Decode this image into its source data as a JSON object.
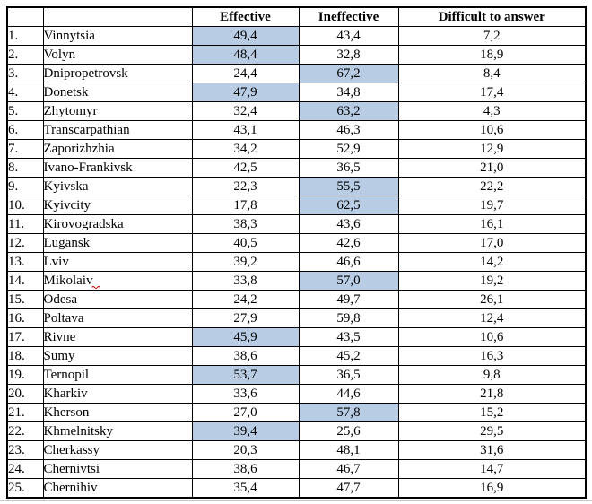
{
  "table": {
    "headers": [
      "",
      "",
      "Effective",
      "Ineffective",
      "Difficult to answer"
    ],
    "highlight_color": "#B8CCE4",
    "border_color": "#000000",
    "spellcheck_color": "#cc0000",
    "rows": [
      {
        "num": "1.",
        "region": "Vinnytsia",
        "effective": "49,4",
        "ineffective": "43,4",
        "difficult": "7,2",
        "highlight": "effective"
      },
      {
        "num": "2.",
        "region": "Volyn",
        "effective": "48,4",
        "ineffective": "32,8",
        "difficult": "18,9",
        "highlight": "effective"
      },
      {
        "num": "3.",
        "region": "Dnipropetrovsk",
        "effective": "24,4",
        "ineffective": "67,2",
        "difficult": "8,4",
        "highlight": "ineffective"
      },
      {
        "num": "4.",
        "region": "Donetsk",
        "effective": "47,9",
        "ineffective": "34,8",
        "difficult": "17,4",
        "highlight": "effective"
      },
      {
        "num": "5.",
        "region": "Zhytomyr",
        "effective": "32,4",
        "ineffective": "63,2",
        "difficult": "4,3",
        "highlight": "ineffective"
      },
      {
        "num": "6.",
        "region": "Transcarpathian",
        "effective": "43,1",
        "ineffective": "46,3",
        "difficult": "10,6",
        "highlight": null
      },
      {
        "num": "7.",
        "region": "Zaporizhzhia",
        "effective": "34,2",
        "ineffective": "52,9",
        "difficult": "12,9",
        "highlight": null
      },
      {
        "num": "8.",
        "region": "Ivano-Frankivsk",
        "effective": "42,5",
        "ineffective": "36,5",
        "difficult": "21,0",
        "highlight": null
      },
      {
        "num": "9.",
        "region": "Kyivska",
        "effective": "22,3",
        "ineffective": "55,5",
        "difficult": "22,2",
        "highlight": "ineffective"
      },
      {
        "num": "10.",
        "region": "Kyivcity",
        "effective": "17,8",
        "ineffective": "62,5",
        "difficult": "19,7",
        "highlight": "ineffective"
      },
      {
        "num": "11.",
        "region": "Kirovogradska",
        "effective": "38,3",
        "ineffective": "43,6",
        "difficult": "16,1",
        "highlight": null
      },
      {
        "num": "12.",
        "region": "Lugansk",
        "effective": "40,5",
        "ineffective": "42,6",
        "difficult": "17,0",
        "highlight": null
      },
      {
        "num": "13.",
        "region": "Lviv",
        "effective": "39,2",
        "ineffective": "46,6",
        "difficult": "14,2",
        "highlight": null
      },
      {
        "num": "14.",
        "region": "Mikolaiv",
        "effective": "33,8",
        "ineffective": "57,0",
        "difficult": "19,2",
        "highlight": "ineffective",
        "spellcheck_mark": true
      },
      {
        "num": "15.",
        "region": "Odesa",
        "effective": "24,2",
        "ineffective": "49,7",
        "difficult": "26,1",
        "highlight": null
      },
      {
        "num": "16.",
        "region": "Poltava",
        "effective": "27,9",
        "ineffective": "59,8",
        "difficult": "12,4",
        "highlight": null
      },
      {
        "num": "17.",
        "region": "Rivne",
        "effective": "45,9",
        "ineffective": "43,5",
        "difficult": "10,6",
        "highlight": "effective"
      },
      {
        "num": "18.",
        "region": "Sumy",
        "effective": "38,6",
        "ineffective": "45,2",
        "difficult": "16,3",
        "highlight": null
      },
      {
        "num": "19.",
        "region": "Ternopil",
        "effective": "53,7",
        "ineffective": "36,5",
        "difficult": "9,8",
        "highlight": "effective"
      },
      {
        "num": "20.",
        "region": "Kharkiv",
        "effective": "33,6",
        "ineffective": "44,6",
        "difficult": "21,8",
        "highlight": null
      },
      {
        "num": "21.",
        "region": "Kherson",
        "effective": "27,0",
        "ineffective": "57,8",
        "difficult": "15,2",
        "highlight": "ineffective"
      },
      {
        "num": "22.",
        "region": "Khmelnitsky",
        "effective": "39,4",
        "ineffective": "25,6",
        "difficult": "29,5",
        "highlight": "effective"
      },
      {
        "num": "23.",
        "region": "Cherkassy",
        "effective": "20,3",
        "ineffective": "48,1",
        "difficult": "31,6",
        "highlight": null
      },
      {
        "num": "24.",
        "region": "Chernivtsi",
        "effective": "38,6",
        "ineffective": "46,7",
        "difficult": "14,7",
        "highlight": null
      },
      {
        "num": "25.",
        "region": "Chernihiv",
        "effective": "35,4",
        "ineffective": "47,7",
        "difficult": "16,9",
        "highlight": null
      }
    ]
  }
}
